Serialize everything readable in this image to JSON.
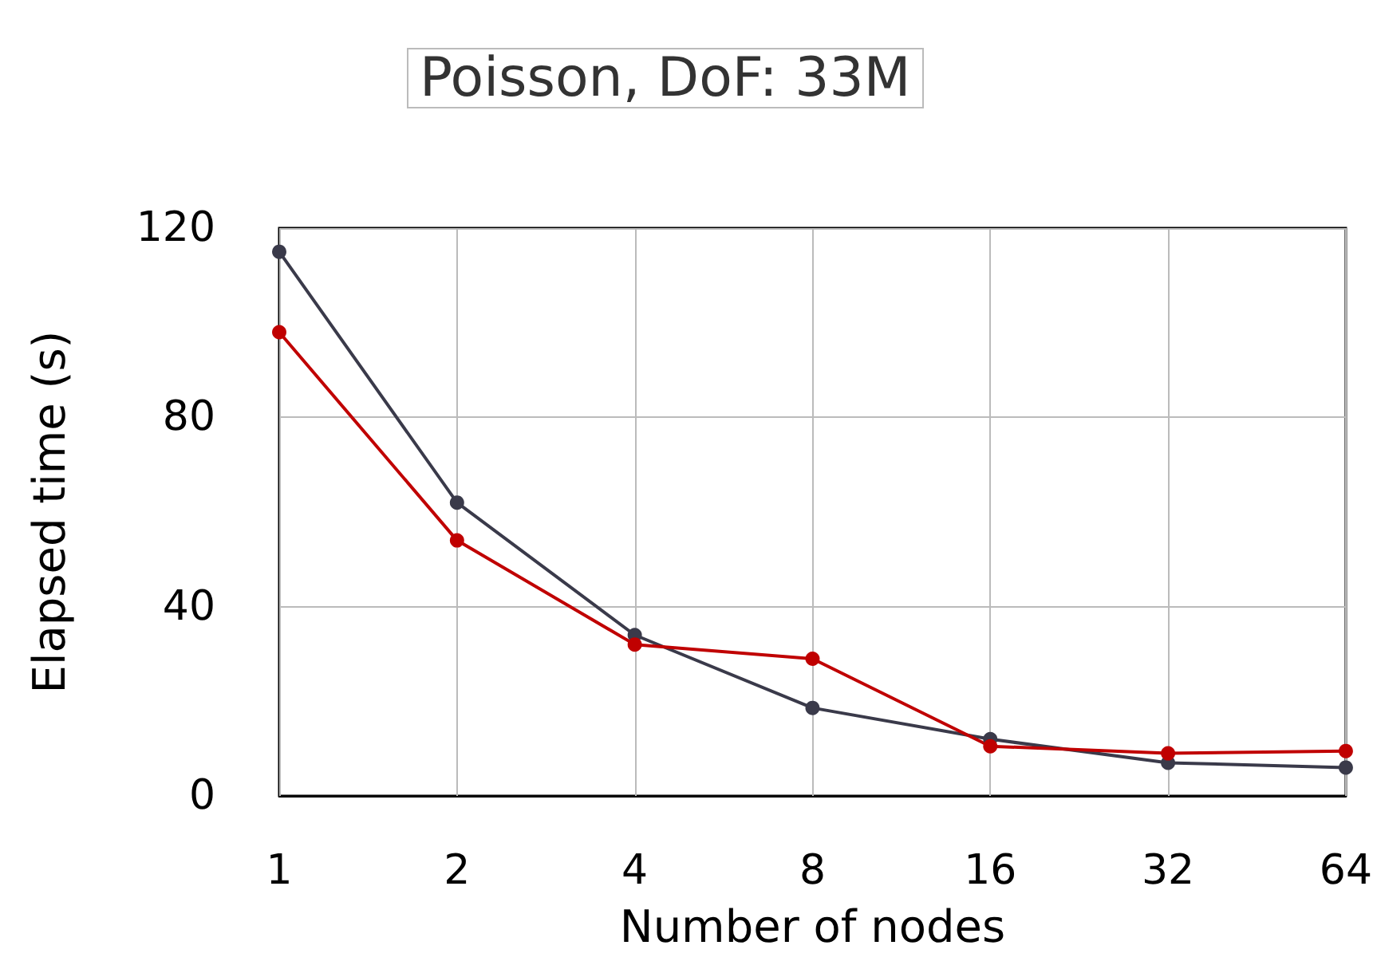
{
  "chart_data": {
    "type": "line",
    "title": "Poisson, DoF: 33M",
    "xlabel": "Number of nodes",
    "ylabel": "Elapsed time (s)",
    "categories": [
      "1",
      "2",
      "4",
      "8",
      "16",
      "32",
      "64"
    ],
    "series": [
      {
        "color": "#3a3a4a",
        "values": [
          115,
          62,
          34,
          18.6,
          12,
          7,
          6
        ]
      },
      {
        "color": "#c00000",
        "values": [
          98,
          54,
          32,
          29,
          10.5,
          9,
          9.5
        ]
      }
    ],
    "ylim": [
      0,
      120
    ],
    "yticks": [
      0,
      40,
      80,
      120
    ],
    "grid": true,
    "marker": "circle",
    "line_style": "solid"
  }
}
